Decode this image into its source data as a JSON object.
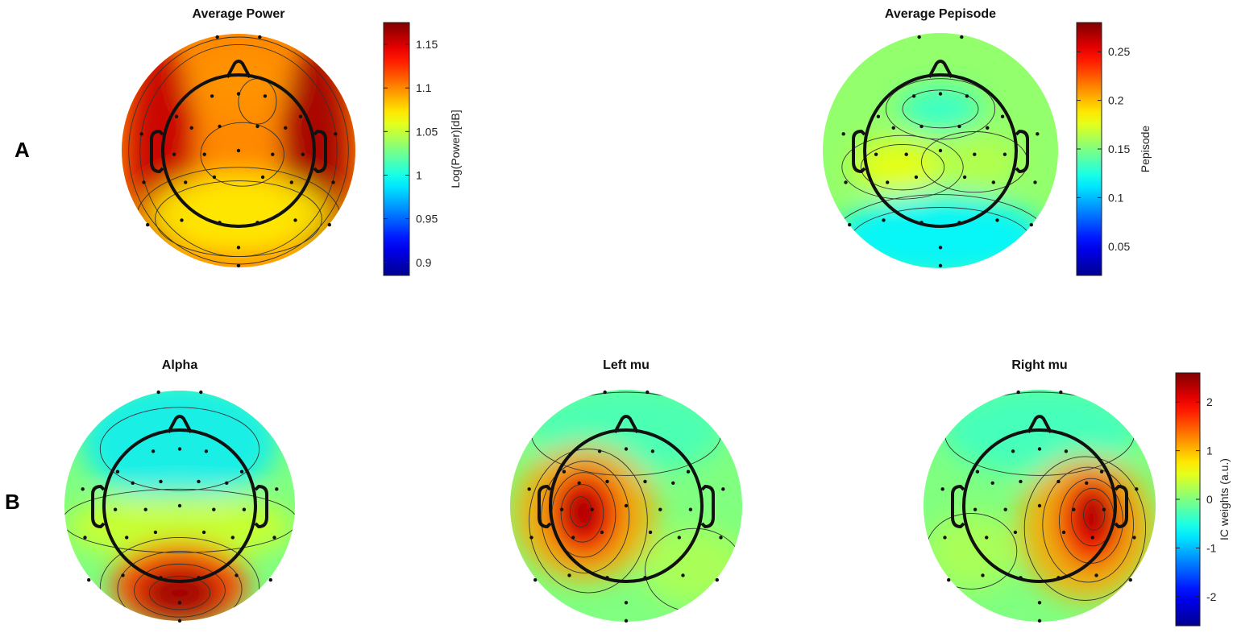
{
  "panel_labels": {
    "a": "A",
    "b": "B"
  },
  "chart_data": [
    {
      "type": "heatmap",
      "kind": "scalp-topography",
      "title": "Average Power",
      "colormap": "jet",
      "colorbar": {
        "label": "Log(Power)[dB]",
        "range": [
          0.885,
          1.175
        ],
        "ticks": [
          1.15,
          1.1,
          1.05,
          1,
          0.95,
          0.9
        ],
        "tick_labels": [
          "1.15",
          "1.1",
          "1.05",
          "1",
          "0.95",
          "0.9"
        ]
      },
      "description_values": {
        "edges_max": 1.17,
        "center": 1.1,
        "posterior": 1.07
      }
    },
    {
      "type": "heatmap",
      "kind": "scalp-topography",
      "title": "Average Pepisode",
      "colormap": "jet",
      "colorbar": {
        "label": "Pepisode",
        "range": [
          0.02,
          0.28
        ],
        "ticks": [
          0.25,
          0.2,
          0.15,
          0.1,
          0.05
        ],
        "tick_labels": [
          "0.25",
          "0.2",
          "0.15",
          "0.1",
          "0.05"
        ]
      },
      "description_values": {
        "central_band": 0.18,
        "frontal": 0.13,
        "occipital": 0.11
      }
    },
    {
      "type": "heatmap",
      "kind": "scalp-topography",
      "title": "Alpha",
      "colormap": "jet",
      "shared_colorbar": "ic_weights",
      "peak": {
        "region": "occipital",
        "value": 2.4
      }
    },
    {
      "type": "heatmap",
      "kind": "scalp-topography",
      "title": "Left mu",
      "colormap": "jet",
      "shared_colorbar": "ic_weights",
      "peak": {
        "region": "left-central",
        "value": 2.5
      }
    },
    {
      "type": "heatmap",
      "kind": "scalp-topography",
      "title": "Right mu",
      "colormap": "jet",
      "shared_colorbar": "ic_weights",
      "peak": {
        "region": "right-central",
        "value": 2.5
      }
    },
    {
      "type": "colorbar",
      "id": "ic_weights",
      "label": "IC weights (a.u.)",
      "range": [
        -2.6,
        2.6
      ],
      "ticks": [
        2,
        1,
        0,
        -1,
        -2
      ],
      "tick_labels": [
        "2",
        "1",
        "0",
        "-1",
        "-2"
      ]
    }
  ]
}
